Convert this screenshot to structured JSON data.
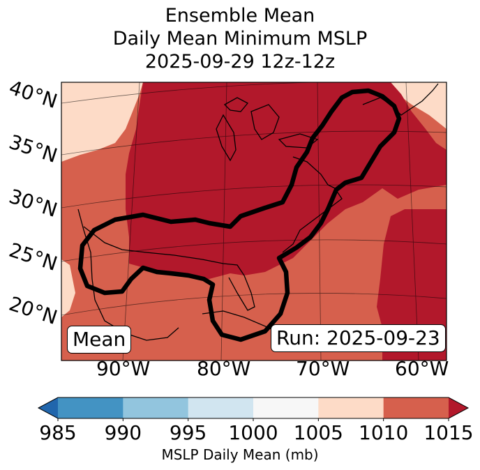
{
  "title": {
    "line1": "Ensemble Mean",
    "line2": "Daily Mean Minimum MSLP",
    "line3": "2025-09-29 12z-12z"
  },
  "map": {
    "lat_labels": [
      "40°N",
      "35°N",
      "30°N",
      "25°N",
      "20°N"
    ],
    "lon_labels": [
      "90°W",
      "80°W",
      "70°W",
      "60°W"
    ],
    "mean_label": "Mean",
    "run_label": "Run: 2025-09-23",
    "fill_colors": {
      "1005-1010": "#fddbc7",
      "1010-1015": "#d6604d",
      "1015+": "#b2182b"
    },
    "contour_color": "#000000"
  },
  "colorbar": {
    "label": "MSLP Daily Mean (mb)",
    "ticks": [
      "985",
      "990",
      "995",
      "1000",
      "1005",
      "1010",
      "1015"
    ],
    "colors": [
      "#2166ac",
      "#4393c3",
      "#92c5de",
      "#d1e5f0",
      "#f7f7f7",
      "#fddbc7",
      "#d6604d",
      "#b2182b"
    ],
    "extend": "both"
  }
}
